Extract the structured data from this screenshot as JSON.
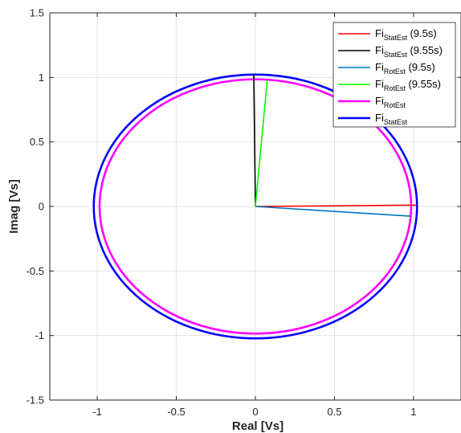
{
  "chart_data": {
    "type": "line",
    "xlabel": "Real [Vs]",
    "ylabel": "Imag [Vs]",
    "xlim": [
      -1.3,
      1.3
    ],
    "ylim": [
      -1.5,
      1.5
    ],
    "xticks": [
      -1,
      -0.5,
      0,
      0.5,
      1
    ],
    "xtick_labels": [
      "-1",
      "-0.5",
      "0",
      "0.5",
      "1"
    ],
    "yticks": [
      -1.5,
      -1,
      -0.5,
      0,
      0.5,
      1,
      1.5
    ],
    "ytick_labels": [
      "-1.5",
      "-1",
      "-0.5",
      "0",
      "0.5",
      "1",
      "1.5"
    ],
    "grid": true,
    "legend_position": "top-right",
    "series": [
      {
        "label": "Fi",
        "sub": "StatEst",
        "suffix": " (9.5s)",
        "color": "#ff0000",
        "kind": "segment",
        "x": [
          0,
          1.02
        ],
        "y": [
          0,
          0.01
        ]
      },
      {
        "label": "Fi",
        "sub": "StatEst",
        "suffix": " (9.55s)",
        "color": "#000000",
        "kind": "segment",
        "x": [
          0,
          -0.01
        ],
        "y": [
          0,
          1.02
        ]
      },
      {
        "label": "Fi",
        "sub": "RotEst",
        "suffix": " (9.5s)",
        "color": "#0072bd",
        "kind": "segment",
        "x": [
          0,
          0.98
        ],
        "y": [
          0,
          -0.075
        ]
      },
      {
        "label": "Fi",
        "sub": "RotEst",
        "suffix": " (9.55s)",
        "color": "#00ff00",
        "kind": "segment",
        "x": [
          0,
          0.075
        ],
        "y": [
          0,
          0.98
        ]
      },
      {
        "label": "Fi",
        "sub": "RotEst",
        "suffix": "",
        "color": "#ff00ff",
        "kind": "circle",
        "radius": 0.985
      },
      {
        "label": "Fi",
        "sub": "StatEst",
        "suffix": "",
        "color": "#0000ff",
        "kind": "circle",
        "radius": 1.022
      }
    ]
  }
}
